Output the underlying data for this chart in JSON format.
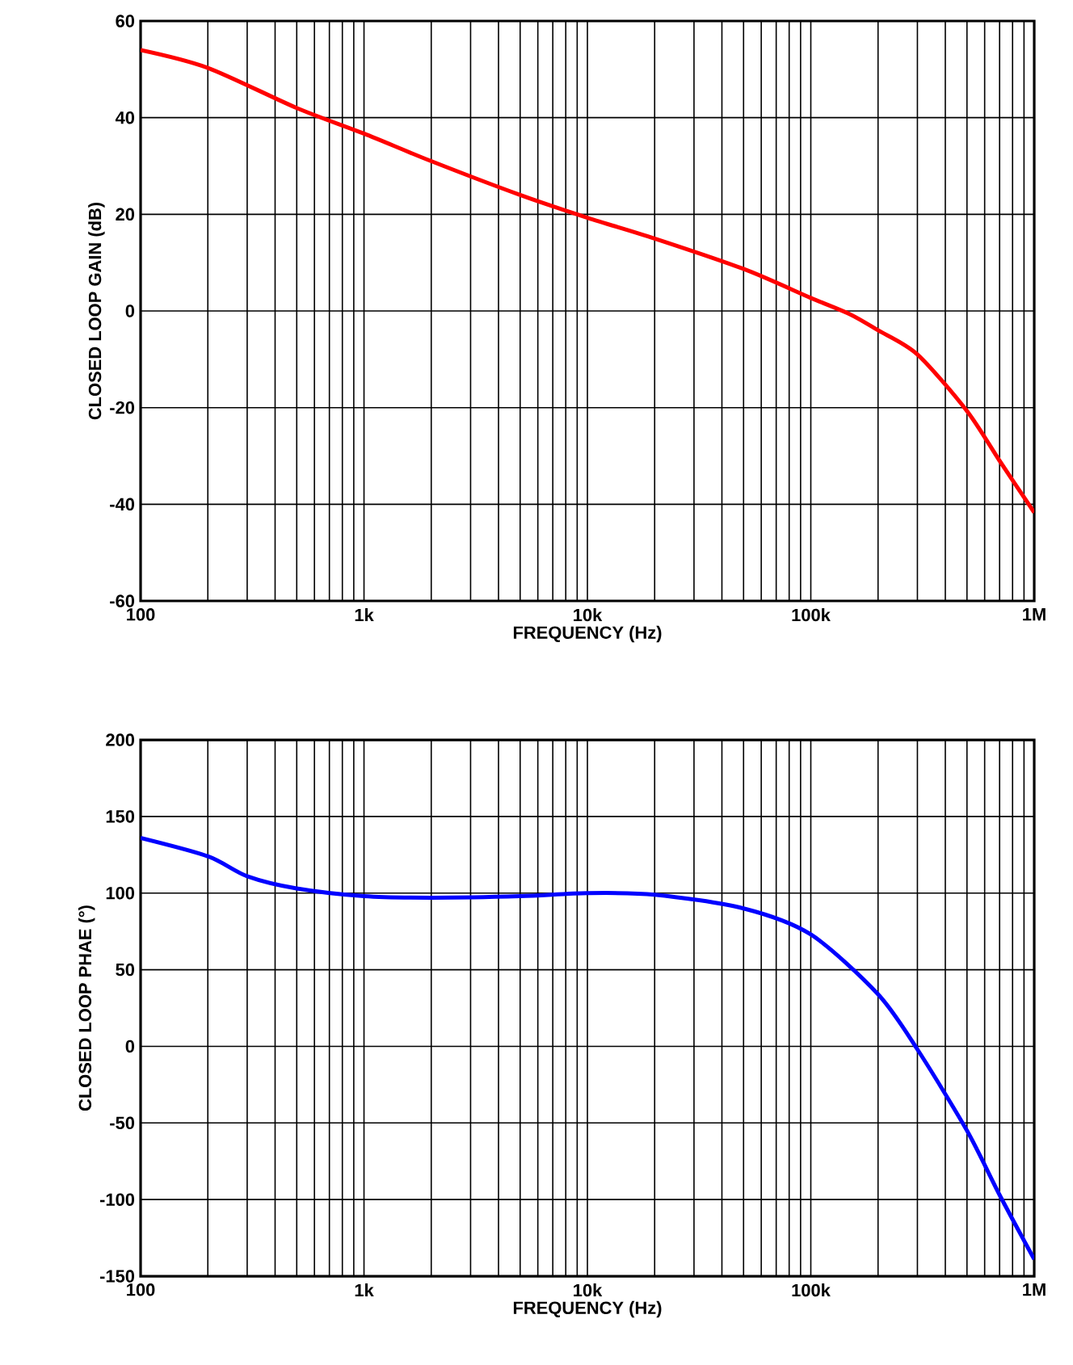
{
  "chart_data": [
    {
      "type": "line",
      "xlabel": "FREQUENCY (Hz)",
      "ylabel": "CLOSED LOOP GAIN (dB)",
      "log": "x",
      "grid": true,
      "xlim": [
        100,
        1000000
      ],
      "ylim": [
        -60,
        60
      ],
      "xticks": [
        {
          "value": 100,
          "label": "100"
        },
        {
          "value": 1000,
          "label": "1k"
        },
        {
          "value": 10000,
          "label": "10k"
        },
        {
          "value": 100000,
          "label": "100k"
        },
        {
          "value": 1000000,
          "label": "1M"
        }
      ],
      "yticks": [
        -60,
        -40,
        -20,
        0,
        20,
        40,
        60
      ],
      "series": [
        {
          "color": "#ff0000",
          "x": [
            100,
            200,
            500,
            1000,
            2000,
            5000,
            10000,
            20000,
            50000,
            100000,
            150000,
            200000,
            300000,
            500000,
            700000,
            1000000
          ],
          "values": [
            54,
            50.3,
            42,
            36.7,
            31,
            24,
            19.3,
            15,
            8.7,
            2.7,
            -0.7,
            -4,
            -9,
            -20.7,
            -31,
            -41.7
          ]
        }
      ]
    },
    {
      "type": "line",
      "xlabel": "FREQUENCY (Hz)",
      "ylabel": "CLOSED LOOP PHAE (°)",
      "log": "x",
      "grid": true,
      "xlim": [
        100,
        1000000
      ],
      "ylim": [
        -150,
        200
      ],
      "xticks": [
        {
          "value": 100,
          "label": "100"
        },
        {
          "value": 1000,
          "label": "1k"
        },
        {
          "value": 10000,
          "label": "10k"
        },
        {
          "value": 100000,
          "label": "100k"
        },
        {
          "value": 1000000,
          "label": "1M"
        }
      ],
      "yticks": [
        -150,
        -100,
        -50,
        0,
        50,
        100,
        150,
        200
      ],
      "series": [
        {
          "color": "#0000ff",
          "x": [
            100,
            200,
            300,
            500,
            1000,
            2000,
            5000,
            10000,
            20000,
            50000,
            100000,
            200000,
            300000,
            500000,
            700000,
            1000000
          ],
          "values": [
            136,
            124,
            111,
            103,
            98,
            97,
            98,
            100,
            99,
            90,
            73,
            34,
            -2,
            -55,
            -97,
            -139
          ]
        }
      ]
    }
  ]
}
